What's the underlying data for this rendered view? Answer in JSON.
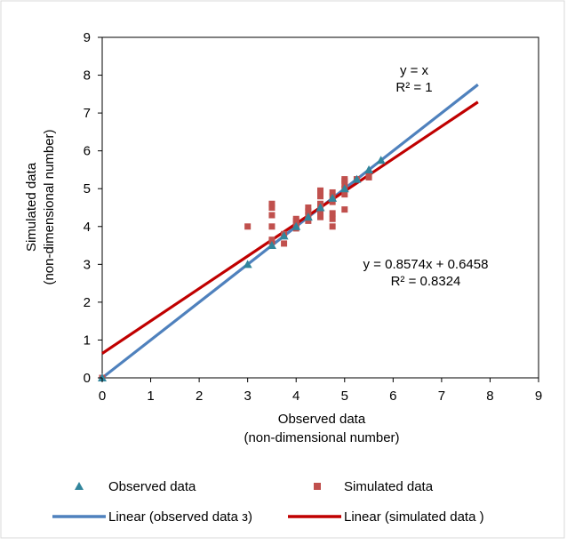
{
  "chart_data": {
    "type": "scatter",
    "title": "",
    "xlabel": [
      "Observed data",
      "(non-dimensional number)"
    ],
    "ylabel": [
      "Simulated data",
      "(non-dimensional number)"
    ],
    "xlim": [
      0,
      9
    ],
    "ylim": [
      0,
      9
    ],
    "x_ticks": [
      "0",
      "1",
      "2",
      "3",
      "4",
      "5",
      "6",
      "7",
      "8",
      "9"
    ],
    "y_ticks": [
      "0",
      "1",
      "2",
      "3",
      "4",
      "5",
      "6",
      "7",
      "8",
      "9"
    ],
    "grid": false,
    "legend_position": "bottom",
    "series": [
      {
        "name": "Observed data",
        "marker": "triangle",
        "color": "#31859c",
        "points": [
          [
            0,
            0
          ],
          [
            3,
            3
          ],
          [
            3.5,
            3.5
          ],
          [
            3.75,
            3.75
          ],
          [
            4,
            4
          ],
          [
            4.25,
            4.25
          ],
          [
            4.5,
            4.5
          ],
          [
            4.75,
            4.75
          ],
          [
            5,
            5
          ],
          [
            5.25,
            5.25
          ],
          [
            5.5,
            5.5
          ],
          [
            5.75,
            5.75
          ]
        ]
      },
      {
        "name": "Simulated data",
        "marker": "square",
        "color": "#c0504d",
        "points": [
          [
            0,
            0
          ],
          [
            3,
            4.0
          ],
          [
            3.5,
            3.6
          ],
          [
            3.5,
            3.65
          ],
          [
            3.5,
            4.0
          ],
          [
            3.5,
            4.3
          ],
          [
            3.5,
            4.5
          ],
          [
            3.5,
            4.6
          ],
          [
            3.75,
            3.55
          ],
          [
            3.75,
            3.8
          ],
          [
            4,
            3.95
          ],
          [
            4,
            4.05
          ],
          [
            4,
            4.15
          ],
          [
            4,
            4.2
          ],
          [
            4.25,
            4.15
          ],
          [
            4.25,
            4.3
          ],
          [
            4.25,
            4.4
          ],
          [
            4.25,
            4.5
          ],
          [
            4.5,
            4.25
          ],
          [
            4.5,
            4.35
          ],
          [
            4.5,
            4.45
          ],
          [
            4.5,
            4.6
          ],
          [
            4.5,
            4.8
          ],
          [
            4.5,
            4.95
          ],
          [
            4.75,
            4.0
          ],
          [
            4.75,
            4.2
          ],
          [
            4.75,
            4.35
          ],
          [
            4.75,
            4.65
          ],
          [
            4.75,
            4.8
          ],
          [
            4.75,
            4.9
          ],
          [
            5,
            4.45
          ],
          [
            5,
            4.85
          ],
          [
            5,
            5.0
          ],
          [
            5,
            5.1
          ],
          [
            5,
            5.2
          ],
          [
            5,
            5.25
          ],
          [
            5.25,
            5.25
          ],
          [
            5.5,
            5.3
          ],
          [
            5.5,
            5.35
          ]
        ]
      }
    ],
    "trendlines": [
      {
        "name": "Linear (observed data з)",
        "color": "#4f81bd",
        "slope": 1,
        "intercept": 0,
        "x_range": [
          0,
          7.75
        ],
        "equation": "y = x",
        "r2": "R² = 1"
      },
      {
        "name": "Linear (simulated data )",
        "color": "#c00000",
        "slope": 0.8574,
        "intercept": 0.6458,
        "x_range": [
          0,
          7.75
        ],
        "equation": "y = 0.8574x + 0.6458",
        "r2": "R² = 0.8324"
      }
    ]
  }
}
